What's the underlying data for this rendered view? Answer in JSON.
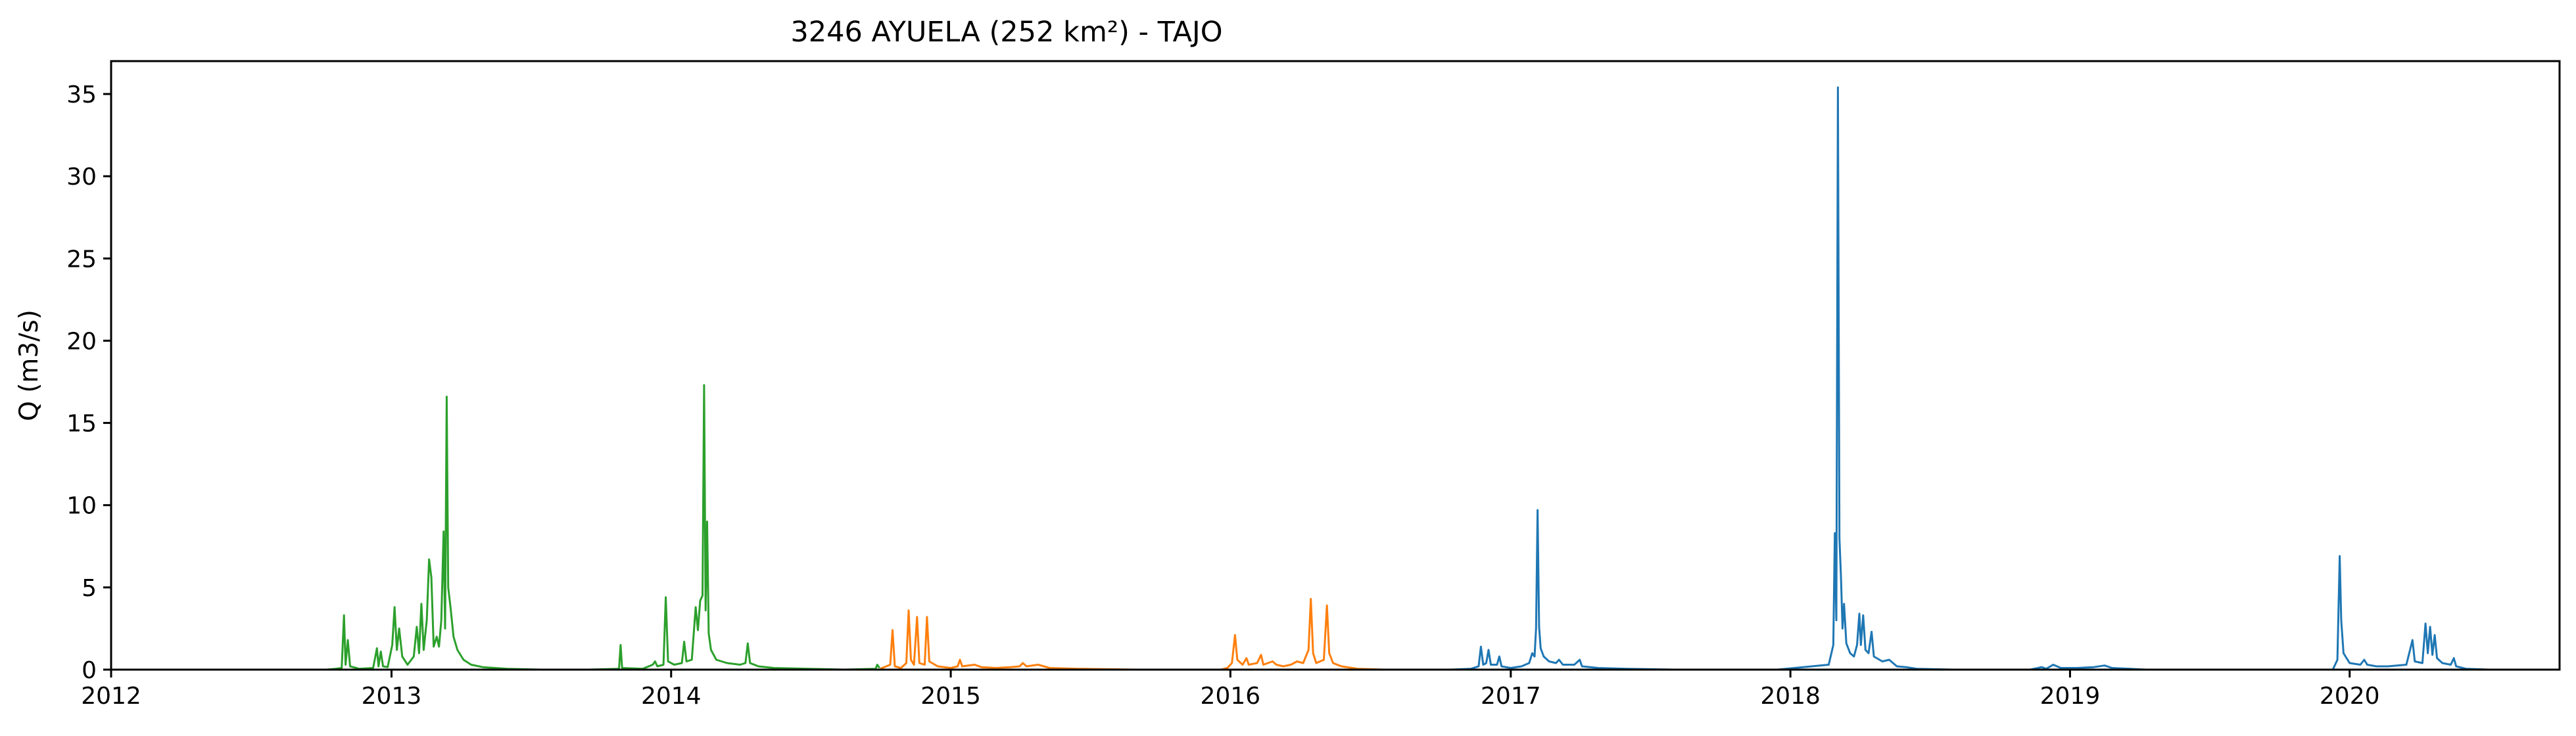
{
  "chart_data": {
    "type": "line",
    "title": "3246 AYUELA (252 km²) - TAJO",
    "xlabel": "",
    "ylabel": "Q (m3/s)",
    "xlim": [
      "2012-01-01",
      "2020-10-01"
    ],
    "ylim": [
      0,
      37
    ],
    "x_ticks": [
      "2012",
      "2013",
      "2014",
      "2015",
      "2016",
      "2017",
      "2018",
      "2019",
      "2020"
    ],
    "y_ticks": [
      "0",
      "5",
      "10",
      "15",
      "20",
      "25",
      "30",
      "35"
    ],
    "grid": false,
    "legend": "none",
    "series": [
      {
        "color": "#2ca02c",
        "points": [
          [
            "2012-10-08",
            0.0
          ],
          [
            "2012-10-20",
            0.05
          ],
          [
            "2012-10-28",
            0.1
          ],
          [
            "2012-10-31",
            3.3
          ],
          [
            "2012-11-02",
            0.3
          ],
          [
            "2012-11-05",
            1.8
          ],
          [
            "2012-11-08",
            0.2
          ],
          [
            "2012-11-20",
            0.05
          ],
          [
            "2012-12-08",
            0.1
          ],
          [
            "2012-12-13",
            1.3
          ],
          [
            "2012-12-15",
            0.2
          ],
          [
            "2012-12-18",
            1.1
          ],
          [
            "2012-12-21",
            0.2
          ],
          [
            "2012-12-27",
            0.15
          ],
          [
            "2013-01-02",
            1.5
          ],
          [
            "2013-01-05",
            3.8
          ],
          [
            "2013-01-08",
            1.2
          ],
          [
            "2013-01-11",
            2.5
          ],
          [
            "2013-01-15",
            0.8
          ],
          [
            "2013-01-22",
            0.3
          ],
          [
            "2013-01-30",
            0.8
          ],
          [
            "2013-02-03",
            2.6
          ],
          [
            "2013-02-06",
            1.0
          ],
          [
            "2013-02-09",
            4.0
          ],
          [
            "2013-02-12",
            1.2
          ],
          [
            "2013-02-16",
            3.0
          ],
          [
            "2013-02-19",
            6.7
          ],
          [
            "2013-02-22",
            5.6
          ],
          [
            "2013-02-25",
            1.4
          ],
          [
            "2013-03-01",
            2.0
          ],
          [
            "2013-03-04",
            1.4
          ],
          [
            "2013-03-07",
            3.0
          ],
          [
            "2013-03-10",
            8.4
          ],
          [
            "2013-03-12",
            2.5
          ],
          [
            "2013-03-14",
            16.6
          ],
          [
            "2013-03-16",
            5.0
          ],
          [
            "2013-03-19",
            3.8
          ],
          [
            "2013-03-23",
            2.0
          ],
          [
            "2013-03-28",
            1.2
          ],
          [
            "2013-04-05",
            0.6
          ],
          [
            "2013-04-15",
            0.3
          ],
          [
            "2013-04-30",
            0.15
          ],
          [
            "2013-06-01",
            0.05
          ],
          [
            "2013-07-15",
            0.0
          ],
          [
            "2013-09-15",
            0.0
          ],
          [
            "2013-10-25",
            0.05
          ],
          [
            "2013-10-27",
            1.5
          ],
          [
            "2013-10-29",
            0.1
          ],
          [
            "2013-11-25",
            0.05
          ],
          [
            "2013-12-08",
            0.3
          ],
          [
            "2013-12-11",
            0.5
          ],
          [
            "2013-12-14",
            0.2
          ],
          [
            "2013-12-22",
            0.3
          ],
          [
            "2013-12-25",
            4.4
          ],
          [
            "2013-12-28",
            0.5
          ],
          [
            "2014-01-05",
            0.3
          ],
          [
            "2014-01-15",
            0.4
          ],
          [
            "2014-01-18",
            1.7
          ],
          [
            "2014-01-21",
            0.5
          ],
          [
            "2014-01-28",
            0.6
          ],
          [
            "2014-02-02",
            3.8
          ],
          [
            "2014-02-05",
            2.4
          ],
          [
            "2014-02-08",
            4.2
          ],
          [
            "2014-02-11",
            4.5
          ],
          [
            "2014-02-13",
            17.3
          ],
          [
            "2014-02-15",
            3.6
          ],
          [
            "2014-02-17",
            9.0
          ],
          [
            "2014-02-19",
            2.2
          ],
          [
            "2014-02-22",
            1.2
          ],
          [
            "2014-03-01",
            0.6
          ],
          [
            "2014-03-15",
            0.4
          ],
          [
            "2014-04-01",
            0.3
          ],
          [
            "2014-04-08",
            0.4
          ],
          [
            "2014-04-11",
            1.6
          ],
          [
            "2014-04-14",
            0.4
          ],
          [
            "2014-04-25",
            0.2
          ],
          [
            "2014-05-15",
            0.1
          ],
          [
            "2014-06-30",
            0.05
          ],
          [
            "2014-08-15",
            0.0
          ],
          [
            "2014-09-25",
            0.05
          ],
          [
            "2014-09-27",
            0.3
          ],
          [
            "2014-09-30",
            0.1
          ]
        ]
      },
      {
        "color": "#ff7f0e",
        "points": [
          [
            "2014-10-01",
            0.05
          ],
          [
            "2014-10-14",
            0.3
          ],
          [
            "2014-10-17",
            2.4
          ],
          [
            "2014-10-20",
            0.2
          ],
          [
            "2014-10-28",
            0.1
          ],
          [
            "2014-11-04",
            0.4
          ],
          [
            "2014-11-07",
            3.6
          ],
          [
            "2014-11-10",
            0.6
          ],
          [
            "2014-11-14",
            0.3
          ],
          [
            "2014-11-18",
            3.2
          ],
          [
            "2014-11-21",
            0.4
          ],
          [
            "2014-11-28",
            0.3
          ],
          [
            "2014-12-01",
            3.2
          ],
          [
            "2014-12-04",
            0.5
          ],
          [
            "2014-12-15",
            0.2
          ],
          [
            "2015-01-01",
            0.1
          ],
          [
            "2015-01-10",
            0.2
          ],
          [
            "2015-01-13",
            0.6
          ],
          [
            "2015-01-16",
            0.2
          ],
          [
            "2015-02-01",
            0.3
          ],
          [
            "2015-02-10",
            0.15
          ],
          [
            "2015-03-01",
            0.1
          ],
          [
            "2015-03-20",
            0.15
          ],
          [
            "2015-04-01",
            0.2
          ],
          [
            "2015-04-05",
            0.4
          ],
          [
            "2015-04-10",
            0.2
          ],
          [
            "2015-04-25",
            0.3
          ],
          [
            "2015-05-10",
            0.1
          ],
          [
            "2015-06-15",
            0.05
          ],
          [
            "2015-09-01",
            0.0
          ],
          [
            "2015-12-20",
            0.0
          ],
          [
            "2015-12-28",
            0.1
          ],
          [
            "2016-01-03",
            0.4
          ],
          [
            "2016-01-07",
            2.1
          ],
          [
            "2016-01-10",
            0.6
          ],
          [
            "2016-01-17",
            0.3
          ],
          [
            "2016-01-22",
            0.7
          ],
          [
            "2016-01-25",
            0.3
          ],
          [
            "2016-02-05",
            0.4
          ],
          [
            "2016-02-10",
            0.9
          ],
          [
            "2016-02-13",
            0.3
          ],
          [
            "2016-02-25",
            0.5
          ],
          [
            "2016-03-01",
            0.3
          ],
          [
            "2016-03-10",
            0.2
          ],
          [
            "2016-03-20",
            0.3
          ],
          [
            "2016-03-28",
            0.5
          ],
          [
            "2016-04-05",
            0.4
          ],
          [
            "2016-04-12",
            1.2
          ],
          [
            "2016-04-15",
            4.3
          ],
          [
            "2016-04-18",
            1.0
          ],
          [
            "2016-04-22",
            0.4
          ],
          [
            "2016-05-02",
            0.6
          ],
          [
            "2016-05-06",
            3.9
          ],
          [
            "2016-05-09",
            1.0
          ],
          [
            "2016-05-14",
            0.4
          ],
          [
            "2016-05-25",
            0.2
          ],
          [
            "2016-06-15",
            0.05
          ],
          [
            "2016-07-20",
            0.0
          ]
        ]
      },
      {
        "color": "#1f77b4",
        "points": [
          [
            "2016-10-15",
            0.0
          ],
          [
            "2016-11-10",
            0.05
          ],
          [
            "2016-11-20",
            0.2
          ],
          [
            "2016-11-23",
            1.4
          ],
          [
            "2016-11-26",
            0.3
          ],
          [
            "2016-11-30",
            0.4
          ],
          [
            "2016-12-03",
            1.2
          ],
          [
            "2016-12-06",
            0.3
          ],
          [
            "2016-12-14",
            0.3
          ],
          [
            "2016-12-17",
            0.8
          ],
          [
            "2016-12-20",
            0.2
          ],
          [
            "2017-01-01",
            0.1
          ],
          [
            "2017-01-15",
            0.2
          ],
          [
            "2017-01-25",
            0.4
          ],
          [
            "2017-01-29",
            1.0
          ],
          [
            "2017-02-01",
            0.8
          ],
          [
            "2017-02-03",
            2.5
          ],
          [
            "2017-02-05",
            9.7
          ],
          [
            "2017-02-07",
            2.6
          ],
          [
            "2017-02-09",
            1.3
          ],
          [
            "2017-02-13",
            0.8
          ],
          [
            "2017-02-20",
            0.5
          ],
          [
            "2017-03-01",
            0.4
          ],
          [
            "2017-03-05",
            0.6
          ],
          [
            "2017-03-10",
            0.3
          ],
          [
            "2017-03-25",
            0.3
          ],
          [
            "2017-04-01",
            0.6
          ],
          [
            "2017-04-04",
            0.2
          ],
          [
            "2017-04-25",
            0.1
          ],
          [
            "2017-06-01",
            0.05
          ],
          [
            "2017-08-01",
            0.0
          ],
          [
            "2017-12-15",
            0.0
          ],
          [
            "2018-02-20",
            0.3
          ],
          [
            "2018-02-26",
            1.5
          ],
          [
            "2018-02-28",
            8.3
          ],
          [
            "2018-03-02",
            3.0
          ],
          [
            "2018-03-04",
            35.4
          ],
          [
            "2018-03-06",
            8.0
          ],
          [
            "2018-03-08",
            5.7
          ],
          [
            "2018-03-10",
            2.5
          ],
          [
            "2018-03-12",
            4.0
          ],
          [
            "2018-03-15",
            1.6
          ],
          [
            "2018-03-20",
            1.0
          ],
          [
            "2018-03-25",
            0.8
          ],
          [
            "2018-03-29",
            1.5
          ],
          [
            "2018-04-01",
            3.4
          ],
          [
            "2018-04-03",
            1.5
          ],
          [
            "2018-04-06",
            3.3
          ],
          [
            "2018-04-09",
            1.2
          ],
          [
            "2018-04-13",
            1.0
          ],
          [
            "2018-04-17",
            2.3
          ],
          [
            "2018-04-20",
            0.8
          ],
          [
            "2018-05-01",
            0.5
          ],
          [
            "2018-05-10",
            0.6
          ],
          [
            "2018-05-20",
            0.2
          ],
          [
            "2018-06-01",
            0.15
          ],
          [
            "2018-06-15",
            0.05
          ],
          [
            "2018-08-01",
            0.0
          ],
          [
            "2018-11-10",
            0.0
          ],
          [
            "2018-11-25",
            0.15
          ],
          [
            "2018-12-01",
            0.05
          ],
          [
            "2018-12-10",
            0.3
          ],
          [
            "2018-12-20",
            0.1
          ],
          [
            "2019-01-10",
            0.1
          ],
          [
            "2019-02-01",
            0.15
          ],
          [
            "2019-02-15",
            0.25
          ],
          [
            "2019-02-25",
            0.1
          ],
          [
            "2019-03-20",
            0.05
          ],
          [
            "2019-04-10",
            0.0
          ],
          [
            "2019-12-10",
            0.0
          ],
          [
            "2019-12-16",
            0.6
          ],
          [
            "2019-12-19",
            6.9
          ],
          [
            "2019-12-21",
            3.0
          ],
          [
            "2019-12-24",
            1.0
          ],
          [
            "2020-01-01",
            0.4
          ],
          [
            "2020-01-15",
            0.3
          ],
          [
            "2020-01-20",
            0.6
          ],
          [
            "2020-01-24",
            0.3
          ],
          [
            "2020-02-05",
            0.2
          ],
          [
            "2020-02-20",
            0.2
          ],
          [
            "2020-03-15",
            0.3
          ],
          [
            "2020-03-23",
            1.8
          ],
          [
            "2020-03-26",
            0.5
          ],
          [
            "2020-04-05",
            0.4
          ],
          [
            "2020-04-09",
            2.8
          ],
          [
            "2020-04-12",
            1.0
          ],
          [
            "2020-04-15",
            2.6
          ],
          [
            "2020-04-18",
            0.9
          ],
          [
            "2020-04-21",
            2.1
          ],
          [
            "2020-04-24",
            0.7
          ],
          [
            "2020-05-01",
            0.4
          ],
          [
            "2020-05-12",
            0.3
          ],
          [
            "2020-05-16",
            0.7
          ],
          [
            "2020-05-19",
            0.2
          ],
          [
            "2020-06-01",
            0.05
          ],
          [
            "2020-07-01",
            0.0
          ]
        ]
      }
    ]
  }
}
